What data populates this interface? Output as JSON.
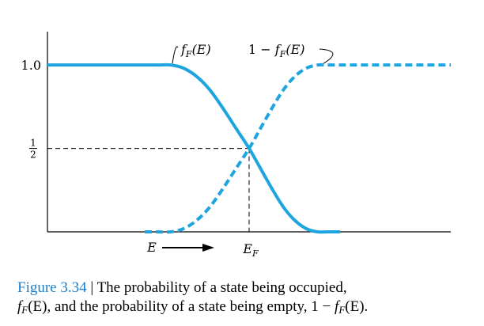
{
  "chart_data": {
    "type": "line",
    "x": [
      -4,
      -3.5,
      -3,
      -2.5,
      -2,
      -1.5,
      -1,
      -0.5,
      0,
      0.5,
      1,
      1.5,
      2,
      2.5,
      3,
      3.5,
      4
    ],
    "series": [
      {
        "name": "f_F(E)",
        "style": "solid",
        "color": "#1ea4df",
        "values": [
          1.0,
          1.0,
          1.0,
          0.98,
          0.93,
          0.85,
          0.74,
          0.62,
          0.5,
          0.38,
          0.26,
          0.15,
          0.07,
          0.02,
          0.0,
          0.0,
          0.0
        ]
      },
      {
        "name": "1 − f_F(E)",
        "style": "dashed",
        "color": "#1ea4df",
        "values": [
          0.0,
          0.0,
          0.0,
          0.02,
          0.07,
          0.15,
          0.26,
          0.38,
          0.5,
          0.62,
          0.74,
          0.85,
          0.93,
          0.98,
          1.0,
          1.0,
          1.0
        ]
      }
    ],
    "ylim": [
      0,
      1.2
    ],
    "yticks": [
      {
        "value": 1.0,
        "label": "1.0"
      },
      {
        "value": 0.5,
        "label_num": "1",
        "label_den": "2"
      }
    ],
    "xtick_label": "E",
    "xtick_sub": "F",
    "xlabel": "E",
    "grid": false
  },
  "annotations": {
    "fe_label_main": "f",
    "fe_label_sub": "F",
    "fe_label_tail": "(E)",
    "one_minus_prefix": "1 − ",
    "one_minus_main": "f",
    "one_minus_sub": "F",
    "one_minus_tail": "(E)"
  },
  "caption": {
    "figure_label": "Figure 3.34",
    "separator": " | ",
    "line1_text": "The probability of a state being occupied,",
    "line2_f": "f",
    "line2_sub": "F",
    "line2_text": "(E), and the probability of a state being empty, 1 − ",
    "line2_f2": "f",
    "line2_sub2": "F",
    "line2_tail": "(E)."
  },
  "colors": {
    "curve": "#1ea4df",
    "axis": "#000000",
    "figure_label": "#1f7fc8"
  }
}
